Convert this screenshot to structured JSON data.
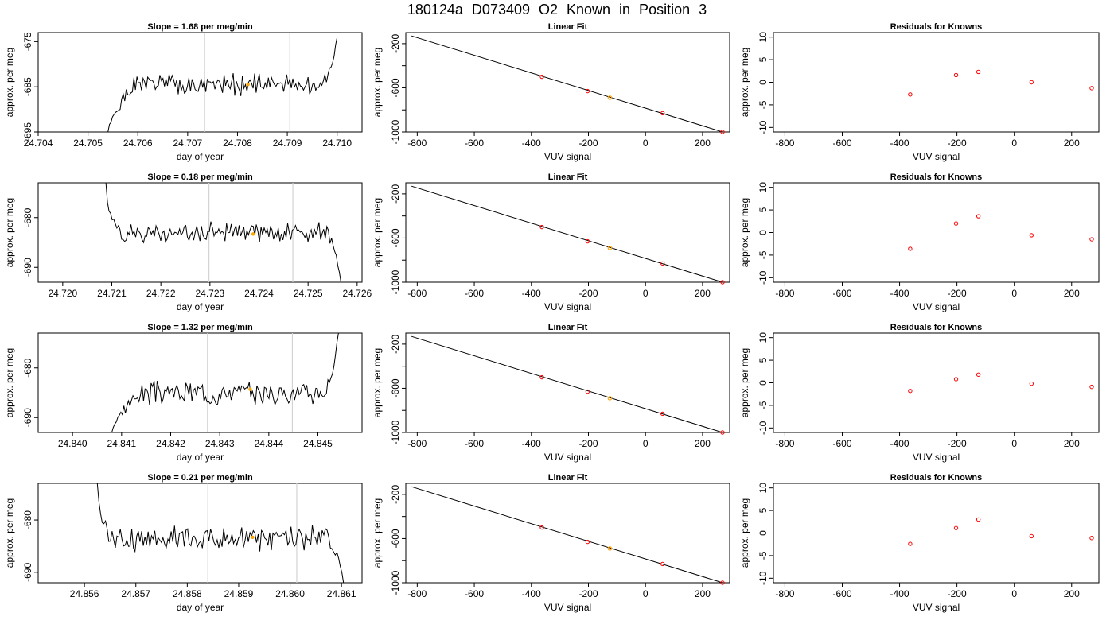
{
  "figure": {
    "title": "180124a     D073409    O2 Known in Position  3"
  },
  "colors": {
    "line": "#000000",
    "marker_vline": "#d3d3d3",
    "highlight": "#ffa500",
    "points": "#ff0000"
  },
  "chart_data": [
    {
      "type": "line",
      "title": "Slope =  1.68  per meg/min",
      "xlabel": "day of year",
      "ylabel": "approx. per meg",
      "xlim": [
        24.704,
        24.7105
      ],
      "ylim": [
        -695,
        -673
      ],
      "xticks": [
        24.704,
        24.705,
        24.706,
        24.707,
        24.708,
        24.709,
        24.71
      ],
      "xtick_labels": [
        "24.704",
        "24.705",
        "24.706",
        "24.707",
        "24.708",
        "24.709",
        "24.710"
      ],
      "yticks": [
        -695,
        -685,
        -675
      ],
      "ytick_labels": [
        "-695",
        "-685",
        "-675"
      ],
      "vlines": [
        24.70734,
        24.70905
      ],
      "series": [
        {
          "x_start": 24.7054,
          "x_end": 24.71,
          "y_start": -695,
          "y_end": -674,
          "base": -684.5,
          "amp": 1.8,
          "seed": 1,
          "approach": "down",
          "exit": "up"
        }
      ],
      "highlight": {
        "x": 24.70821,
        "y": -684.5
      }
    },
    {
      "type": "scatter",
      "title": "Linear Fit",
      "xlabel": "VUV signal",
      "ylabel": "approx. per meg",
      "xlim": [
        -840,
        295
      ],
      "ylim": [
        -1000,
        -100
      ],
      "xticks": [
        -800,
        -600,
        -400,
        -200,
        0,
        200
      ],
      "xtick_labels": [
        "-800",
        "-600",
        "-400",
        "-200",
        "0",
        "200"
      ],
      "yticks": [
        -1000,
        -600,
        -200
      ],
      "ytick_labels": [
        "-1000",
        "-600",
        "-200"
      ],
      "yminor": [
        -800,
        -400
      ],
      "fit_line": {
        "x": [
          -820,
          270
        ],
        "y": [
          -130,
          -1000
        ]
      },
      "points": [
        {
          "x": -363,
          "y": -500
        },
        {
          "x": -203,
          "y": -630
        },
        {
          "x": 60,
          "y": -830
        },
        {
          "x": 270,
          "y": -1000
        }
      ],
      "highlight": {
        "x": -125,
        "y": -690
      }
    },
    {
      "type": "scatter",
      "title": "Residuals for Knowns",
      "xlabel": "VUV signal",
      "ylabel": "approx. per meg",
      "xlim": [
        -840,
        295
      ],
      "ylim": [
        -11,
        11
      ],
      "xticks": [
        -800,
        -600,
        -400,
        -200,
        0,
        200
      ],
      "xtick_labels": [
        "-800",
        "-600",
        "-400",
        "-200",
        "0",
        "200"
      ],
      "yticks": [
        -10,
        -5,
        0,
        5,
        10
      ],
      "ytick_labels": [
        "-10",
        "-5",
        "0",
        "5",
        "10"
      ],
      "points": [
        {
          "x": -363,
          "y": -2.7
        },
        {
          "x": -203,
          "y": 1.6
        },
        {
          "x": -125,
          "y": 2.3
        },
        {
          "x": 60,
          "y": 0
        },
        {
          "x": 270,
          "y": -1.3
        }
      ]
    },
    {
      "type": "line",
      "title": "Slope =  0.18  per meg/min",
      "xlabel": "day of year",
      "ylabel": "approx. per meg",
      "xlim": [
        24.7195,
        24.7261
      ],
      "ylim": [
        -693,
        -673
      ],
      "xticks": [
        24.72,
        24.721,
        24.722,
        24.723,
        24.724,
        24.725,
        24.726
      ],
      "xtick_labels": [
        "24.720",
        "24.721",
        "24.722",
        "24.723",
        "24.724",
        "24.725",
        "24.726"
      ],
      "yticks": [
        -690,
        -680
      ],
      "ytick_labels": [
        "-690",
        "-680"
      ],
      "vlines": [
        24.72298,
        24.72469
      ],
      "series": [
        {
          "x_start": 24.72088,
          "x_end": 24.72567,
          "y_start": -673,
          "y_end": -693,
          "base": -683,
          "amp": 1.5,
          "seed": 2,
          "approach": "drop",
          "exit": "down"
        }
      ],
      "highlight": {
        "x": 24.72388,
        "y": -683.3
      }
    },
    {
      "type": "scatter",
      "title": "Linear Fit",
      "xlabel": "VUV signal",
      "ylabel": "approx. per meg",
      "xlim": [
        -840,
        295
      ],
      "ylim": [
        -1000,
        -100
      ],
      "xticks": [
        -800,
        -600,
        -400,
        -200,
        0,
        200
      ],
      "xtick_labels": [
        "-800",
        "-600",
        "-400",
        "-200",
        "0",
        "200"
      ],
      "yticks": [
        -1000,
        -600,
        -200
      ],
      "ytick_labels": [
        "-1000",
        "-600",
        "-200"
      ],
      "yminor": [
        -800,
        -400
      ],
      "fit_line": {
        "x": [
          -820,
          270
        ],
        "y": [
          -130,
          -1000
        ]
      },
      "points": [
        {
          "x": -363,
          "y": -500
        },
        {
          "x": -203,
          "y": -630
        },
        {
          "x": 60,
          "y": -830
        },
        {
          "x": 270,
          "y": -1000
        }
      ],
      "highlight": {
        "x": -125,
        "y": -690
      }
    },
    {
      "type": "scatter",
      "title": "Residuals for Knowns",
      "xlabel": "VUV signal",
      "ylabel": "approx. per meg",
      "xlim": [
        -840,
        295
      ],
      "ylim": [
        -11,
        11
      ],
      "xticks": [
        -800,
        -600,
        -400,
        -200,
        0,
        200
      ],
      "xtick_labels": [
        "-800",
        "-600",
        "-400",
        "-200",
        "0",
        "200"
      ],
      "yticks": [
        -10,
        -5,
        0,
        5,
        10
      ],
      "ytick_labels": [
        "-10",
        "-5",
        "0",
        "5",
        "10"
      ],
      "points": [
        {
          "x": -363,
          "y": -3.6
        },
        {
          "x": -203,
          "y": 2.0
        },
        {
          "x": -125,
          "y": 3.6
        },
        {
          "x": 60,
          "y": -0.6
        },
        {
          "x": 270,
          "y": -1.5
        }
      ]
    },
    {
      "type": "line",
      "title": "Slope =  1.32  per meg/min",
      "xlabel": "day of year",
      "ylabel": "approx. per meg",
      "xlim": [
        24.8393,
        24.8459
      ],
      "ylim": [
        -693,
        -673
      ],
      "xticks": [
        24.84,
        24.841,
        24.842,
        24.843,
        24.844,
        24.845
      ],
      "xtick_labels": [
        "24.840",
        "24.841",
        "24.842",
        "24.843",
        "24.844",
        "24.845"
      ],
      "yticks": [
        -690,
        -680
      ],
      "ytick_labels": [
        "-690",
        "-680"
      ],
      "vlines": [
        24.84275,
        24.84448
      ],
      "series": [
        {
          "x_start": 24.8408,
          "x_end": 24.84542,
          "y_start": -693,
          "y_end": -673,
          "base": -685,
          "amp": 1.8,
          "seed": 3,
          "approach": "down",
          "exit": "up"
        }
      ],
      "highlight": {
        "x": 24.84362,
        "y": -684.3
      }
    },
    {
      "type": "scatter",
      "title": "Linear Fit",
      "xlabel": "VUV signal",
      "ylabel": "approx. per meg",
      "xlim": [
        -840,
        295
      ],
      "ylim": [
        -1000,
        -100
      ],
      "xticks": [
        -800,
        -600,
        -400,
        -200,
        0,
        200
      ],
      "xtick_labels": [
        "-800",
        "-600",
        "-400",
        "-200",
        "0",
        "200"
      ],
      "yticks": [
        -1000,
        -600,
        -200
      ],
      "ytick_labels": [
        "-1000",
        "-600",
        "-200"
      ],
      "yminor": [
        -800,
        -400
      ],
      "fit_line": {
        "x": [
          -820,
          270
        ],
        "y": [
          -130,
          -1000
        ]
      },
      "points": [
        {
          "x": -363,
          "y": -500
        },
        {
          "x": -203,
          "y": -630
        },
        {
          "x": 60,
          "y": -830
        },
        {
          "x": 270,
          "y": -1000
        }
      ],
      "highlight": {
        "x": -125,
        "y": -690
      }
    },
    {
      "type": "scatter",
      "title": "Residuals for Knowns",
      "xlabel": "VUV signal",
      "ylabel": "approx. per meg",
      "xlim": [
        -840,
        295
      ],
      "ylim": [
        -11,
        11
      ],
      "xticks": [
        -800,
        -600,
        -400,
        -200,
        0,
        200
      ],
      "xtick_labels": [
        "-800",
        "-600",
        "-400",
        "-200",
        "0",
        "200"
      ],
      "yticks": [
        -10,
        -5,
        0,
        5,
        10
      ],
      "ytick_labels": [
        "-10",
        "-5",
        "0",
        "5",
        "10"
      ],
      "points": [
        {
          "x": -363,
          "y": -1.8
        },
        {
          "x": -203,
          "y": 0.8
        },
        {
          "x": -125,
          "y": 1.8
        },
        {
          "x": 60,
          "y": -0.2
        },
        {
          "x": 270,
          "y": -0.9
        }
      ]
    },
    {
      "type": "line",
      "title": "Slope =  0.21  per meg/min",
      "xlabel": "day of year",
      "ylabel": "approx. per meg",
      "xlim": [
        24.8551,
        24.8614
      ],
      "ylim": [
        -692,
        -673
      ],
      "xticks": [
        24.856,
        24.857,
        24.858,
        24.859,
        24.86,
        24.861
      ],
      "xtick_labels": [
        "24.856",
        "24.857",
        "24.858",
        "24.859",
        "24.860",
        "24.861"
      ],
      "yticks": [
        -690,
        -680
      ],
      "ytick_labels": [
        "-690",
        "-680"
      ],
      "vlines": [
        24.8584,
        24.86013
      ],
      "series": [
        {
          "x_start": 24.85625,
          "x_end": 24.86104,
          "y_start": -673,
          "y_end": -692,
          "base": -683.5,
          "amp": 1.9,
          "seed": 4,
          "approach": "drop",
          "exit": "down"
        }
      ],
      "highlight": {
        "x": 24.85927,
        "y": -683.3
      }
    },
    {
      "type": "scatter",
      "title": "Linear Fit",
      "xlabel": "VUV signal",
      "ylabel": "approx. per meg",
      "xlim": [
        -840,
        295
      ],
      "ylim": [
        -1000,
        -100
      ],
      "xticks": [
        -800,
        -600,
        -400,
        -200,
        0,
        200
      ],
      "xtick_labels": [
        "-800",
        "-600",
        "-400",
        "-200",
        "0",
        "200"
      ],
      "yticks": [
        -1000,
        -600,
        -200
      ],
      "ytick_labels": [
        "-1000",
        "-600",
        "-200"
      ],
      "yminor": [
        -800,
        -400
      ],
      "fit_line": {
        "x": [
          -820,
          270
        ],
        "y": [
          -130,
          -1000
        ]
      },
      "points": [
        {
          "x": -363,
          "y": -500
        },
        {
          "x": -203,
          "y": -630
        },
        {
          "x": 60,
          "y": -830
        },
        {
          "x": 270,
          "y": -1000
        }
      ],
      "highlight": {
        "x": -125,
        "y": -690
      }
    },
    {
      "type": "scatter",
      "title": "Residuals for Knowns",
      "xlabel": "VUV signal",
      "ylabel": "approx. per meg",
      "xlim": [
        -840,
        295
      ],
      "ylim": [
        -11,
        11
      ],
      "xticks": [
        -800,
        -600,
        -400,
        -200,
        0,
        200
      ],
      "xtick_labels": [
        "-800",
        "-600",
        "-400",
        "-200",
        "0",
        "200"
      ],
      "yticks": [
        -10,
        -5,
        0,
        5,
        10
      ],
      "ytick_labels": [
        "-10",
        "-5",
        "0",
        "5",
        "10"
      ],
      "points": [
        {
          "x": -363,
          "y": -2.4
        },
        {
          "x": -203,
          "y": 1.1
        },
        {
          "x": -125,
          "y": 3.0
        },
        {
          "x": 60,
          "y": -0.7
        },
        {
          "x": 270,
          "y": -1.1
        }
      ]
    }
  ]
}
